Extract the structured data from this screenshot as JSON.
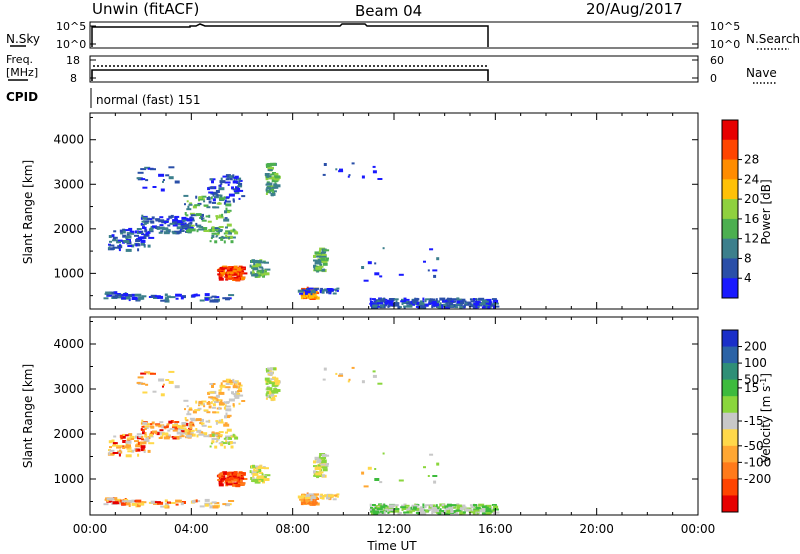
{
  "header": {
    "title": "Unwin (fitACF)",
    "beam": "Beam 04",
    "date": "20/Aug/2017"
  },
  "status_panels": {
    "nsky": {
      "label": "N.Sky",
      "ticks_left": [
        "10^5",
        "10^0"
      ],
      "ticks_right": [
        "10^5",
        "10^0"
      ],
      "right_label": "N.Search"
    },
    "freq": {
      "label_line1": "Freq.",
      "label_line2": "[MHz]",
      "ticks_left": [
        "18",
        "8"
      ],
      "ticks_right": [
        "60",
        "0"
      ],
      "right_label": "Nave"
    },
    "cpid": {
      "label": "CPID",
      "text": "normal (fast) 151"
    }
  },
  "chart_data": [
    {
      "type": "heatmap",
      "name": "power",
      "xlabel": "",
      "ylabel": "Slant Range [km]",
      "xlim": [
        0,
        24
      ],
      "ylim": [
        200,
        4600
      ],
      "yticks": [
        "1000",
        "2000",
        "3000",
        "4000"
      ],
      "colorbar": {
        "label": "Power [dB]",
        "ticks": [
          "4",
          "8",
          "12",
          "16",
          "20",
          "24",
          "28"
        ],
        "colors": [
          "#1a1aff",
          "#2a4fa8",
          "#3c7f8c",
          "#4caf50",
          "#8fd13f",
          "#ffc107",
          "#ff8c00",
          "#ff4500",
          "#e60000"
        ]
      },
      "data_extent_hours": [
        0,
        16
      ]
    },
    {
      "type": "heatmap",
      "name": "velocity",
      "xlabel": "Time UT",
      "ylabel": "Slant Range [km]",
      "xlim": [
        0,
        24
      ],
      "ylim": [
        200,
        4600
      ],
      "yticks": [
        "1000",
        "2000",
        "3000",
        "4000"
      ],
      "xticks": [
        "00:00",
        "04:00",
        "08:00",
        "12:00",
        "16:00",
        "20:00",
        "00:00"
      ],
      "colorbar": {
        "label": "Velocity [m s",
        "label_sup": "-1",
        "label_end": "]",
        "ticks": [
          "200",
          "100",
          "50",
          "15",
          "-15",
          "-50",
          "-100",
          "-200"
        ],
        "colors": [
          "#1a2fc9",
          "#2b63a6",
          "#2f8f77",
          "#3dbb3d",
          "#8ad63c",
          "#c8c8c8",
          "#ffd84a",
          "#ffa733",
          "#ff7a1a",
          "#ff4400",
          "#e60000"
        ]
      },
      "data_extent_hours": [
        0,
        16
      ]
    }
  ]
}
